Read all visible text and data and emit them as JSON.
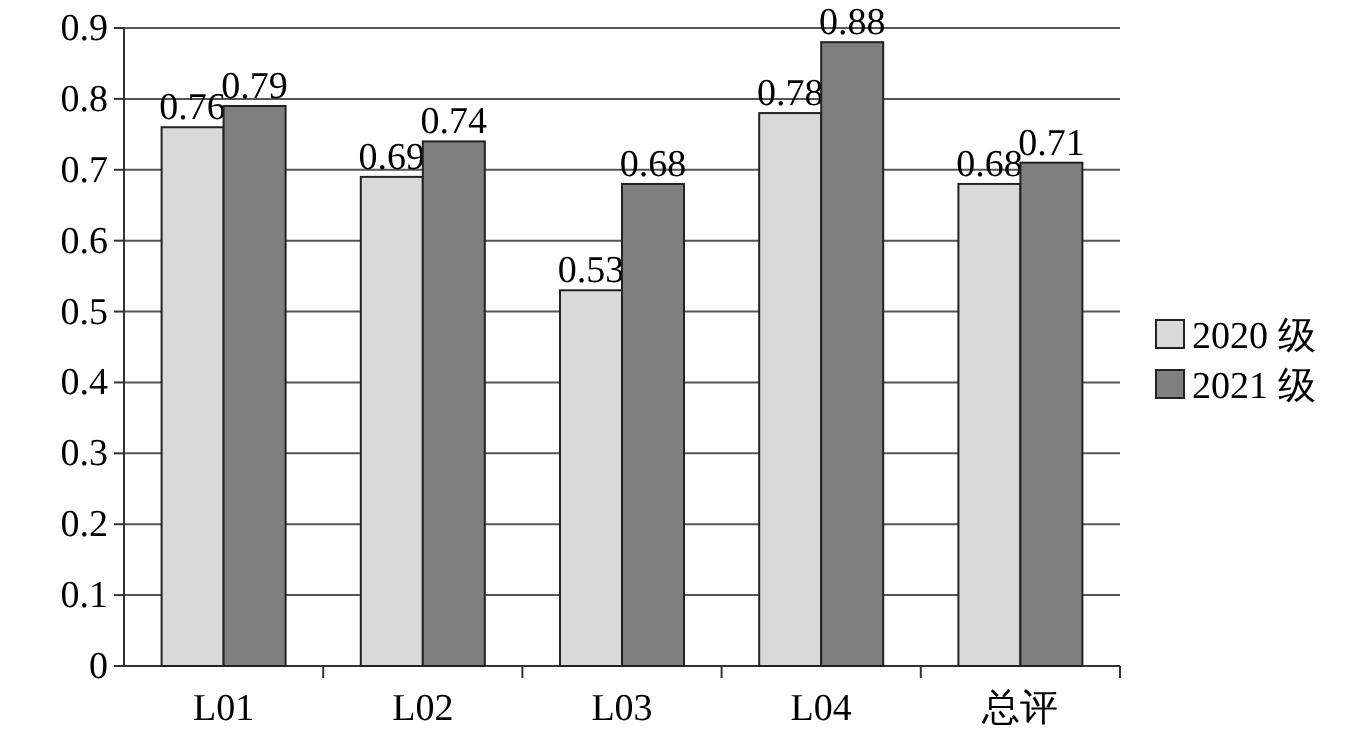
{
  "chart_data": {
    "type": "bar",
    "categories": [
      "L01",
      "L02",
      "L03",
      "L04",
      "总评"
    ],
    "series": [
      {
        "name": "2020 级",
        "color": "#d9d9d9",
        "values": [
          0.76,
          0.69,
          0.53,
          0.78,
          0.68
        ]
      },
      {
        "name": "2021 级",
        "color": "#7f7f7f",
        "values": [
          0.79,
          0.74,
          0.68,
          0.88,
          0.71
        ]
      }
    ],
    "ylim": [
      0,
      0.9
    ],
    "yticks": [
      0,
      0.1,
      0.2,
      0.3,
      0.4,
      0.5,
      0.6,
      0.7,
      0.8,
      0.9
    ],
    "grid": "y",
    "legend": "right",
    "data_labels": true
  }
}
